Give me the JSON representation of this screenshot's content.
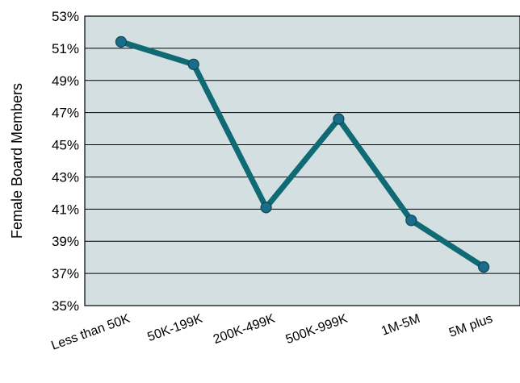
{
  "chart_data": {
    "type": "line",
    "ylabel": "Female  Board  Members",
    "categories": [
      "Less than 50K",
      "50K-199K",
      "200K-499K",
      "500K-999K",
      "1M-5M",
      "5M plus"
    ],
    "series": [
      {
        "values": [
          51.4,
          50.0,
          41.1,
          46.6,
          40.3,
          37.4
        ]
      }
    ],
    "ylim": [
      35,
      53
    ],
    "yticks": [
      35,
      37,
      39,
      41,
      43,
      45,
      47,
      49,
      51,
      53
    ],
    "ytick_labels": [
      "35%",
      "37%",
      "39%",
      "41%",
      "43%",
      "45%",
      "47%",
      "49%",
      "51%",
      "53%"
    ],
    "grid": "horizontal",
    "colors": {
      "plot_background": "#d4dfe2",
      "line": "#0f6a73",
      "marker": "#1b6b8a",
      "grid": "#000000"
    }
  }
}
